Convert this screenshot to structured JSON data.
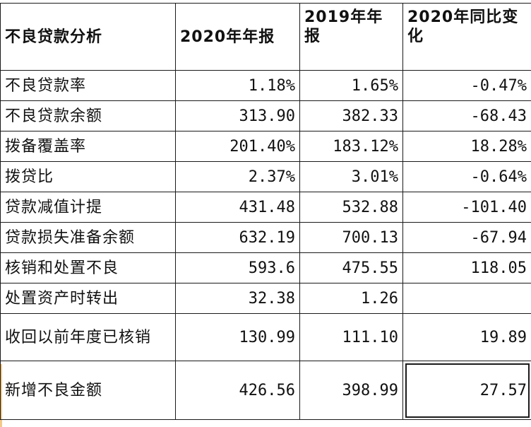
{
  "table": {
    "headers": [
      "不良贷款分析",
      "2020年年报",
      "2019年年报",
      "2020年同比变化"
    ],
    "rows": [
      {
        "label": "不良贷款率",
        "y2020": "1.18%",
        "y2019": "1.65%",
        "change": "-0.47%"
      },
      {
        "label": "不良贷款余额",
        "y2020": "313.90",
        "y2019": "382.33",
        "change": "-68.43"
      },
      {
        "label": "拨备覆盖率",
        "y2020": "201.40%",
        "y2019": "183.12%",
        "change": "18.28%"
      },
      {
        "label": "拨贷比",
        "y2020": "2.37%",
        "y2019": "3.01%",
        "change": "-0.64%"
      },
      {
        "label": "贷款减值计提",
        "y2020": "431.48",
        "y2019": "532.88",
        "change": "-101.40"
      },
      {
        "label": "贷款损失准备余额",
        "y2020": "632.19",
        "y2019": "700.13",
        "change": "-67.94"
      },
      {
        "label": "核销和处置不良",
        "y2020": "593.6",
        "y2019": "475.55",
        "change": "118.05"
      },
      {
        "label": "处置资产时转出",
        "y2020": "32.38",
        "y2019": "1.26",
        "change": ""
      },
      {
        "label": "收回以前年度已核销",
        "y2020": "130.99",
        "y2019": "111.10",
        "change": "19.89"
      },
      {
        "label": "新增不良金额",
        "y2020": "426.56",
        "y2019": "398.99",
        "change": "27.57"
      }
    ]
  }
}
